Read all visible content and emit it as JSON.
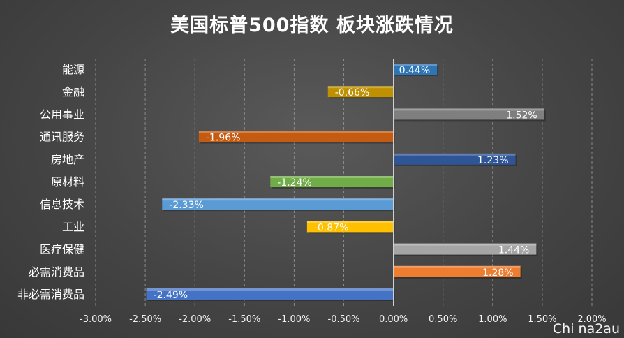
{
  "chart_data": {
    "type": "bar",
    "orientation": "horizontal",
    "title": "美国标普500指数 板块涨跌情况",
    "categories": [
      "能源",
      "金融",
      "公用事业",
      "通讯服务",
      "房地产",
      "原材料",
      "信息技术",
      "工业",
      "医疗保健",
      "必需消费品",
      "非必需消费品"
    ],
    "values": [
      0.44,
      -0.66,
      1.52,
      -1.96,
      1.23,
      -1.24,
      -2.33,
      -0.87,
      1.44,
      1.28,
      -2.49
    ],
    "data_labels": [
      "0.44%",
      "-0.66%",
      "1.52%",
      "-1.96%",
      "1.23%",
      "-1.24%",
      "-2.33%",
      "-0.87%",
      "1.44%",
      "1.28%",
      "-2.49%"
    ],
    "colors": [
      "#2e75b6",
      "#bf9000",
      "#7f7f7f",
      "#c55a11",
      "#2f5597",
      "#70ad47",
      "#5b9bd5",
      "#ffc000",
      "#a5a5a5",
      "#ed7d31",
      "#4472c4"
    ],
    "xlim": [
      -3.0,
      2.0
    ],
    "x_ticks": [
      -3.0,
      -2.5,
      -2.0,
      -1.5,
      -1.0,
      -0.5,
      0.0,
      0.5,
      1.0,
      1.5,
      2.0
    ],
    "x_tick_labels": [
      "-3.00%",
      "-2.50%",
      "-2.00%",
      "-1.50%",
      "-1.00%",
      "-0.50%",
      "0.00%",
      "0.50%",
      "1.00%",
      "1.50%",
      "2.00%"
    ],
    "xlabel": "",
    "ylabel": "",
    "grid": "vertical dashed",
    "legend": "none"
  },
  "watermark": "Chi na2au"
}
